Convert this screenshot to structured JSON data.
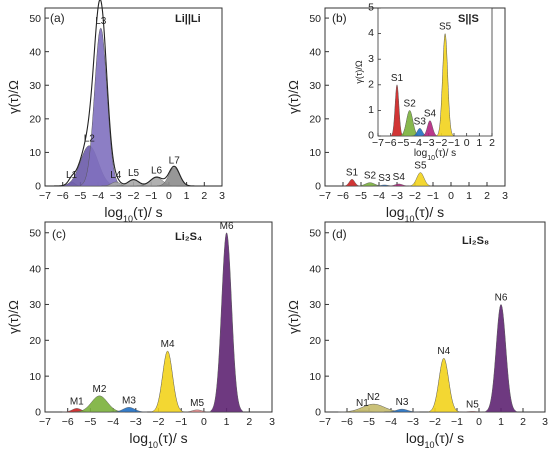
{
  "chart_data": [
    {
      "type": "area",
      "panel": "(a)",
      "sample": "Li||Li",
      "xlabel": "log10(τ)/ s",
      "ylabel": "γ(τ)/Ω",
      "xlim": [
        -7,
        3
      ],
      "ylim": [
        0,
        53
      ],
      "xticks": [
        -7,
        -6,
        -5,
        -4,
        -3,
        -2,
        -1,
        0,
        1,
        2,
        3
      ],
      "yticks": [
        0,
        10,
        20,
        30,
        40,
        50
      ],
      "envelope": true,
      "peaks": [
        {
          "name": "L1",
          "center": -5.5,
          "height": 1.2,
          "width": 0.18,
          "color": "#b9aad3"
        },
        {
          "name": "L2",
          "center": -4.5,
          "height": 12,
          "width": 0.5,
          "color": "#6a5aa8"
        },
        {
          "name": "L3",
          "center": -3.85,
          "height": 47,
          "width": 0.35,
          "color": "#8070bf"
        },
        {
          "name": "L4",
          "center": -3.0,
          "height": 1.2,
          "width": 0.25,
          "color": "#a8a8a8"
        },
        {
          "name": "L5",
          "center": -2.0,
          "height": 1.8,
          "width": 0.3,
          "color": "#a8a8a8"
        },
        {
          "name": "L6",
          "center": -0.7,
          "height": 2.5,
          "width": 0.35,
          "color": "#a8a8a8"
        },
        {
          "name": "L7",
          "center": 0.3,
          "height": 5.5,
          "width": 0.3,
          "color": "#8c8c8c"
        }
      ]
    },
    {
      "type": "area",
      "panel": "(b)",
      "sample": "S||S",
      "xlabel": "log10(τ)/ s",
      "ylabel": "γ(τ)/Ω",
      "xlim": [
        -7,
        3
      ],
      "ylim": [
        0,
        53
      ],
      "xticks": [
        -7,
        -6,
        -5,
        -4,
        -3,
        -2,
        -1,
        0,
        1,
        2,
        3
      ],
      "yticks": [
        0,
        10,
        20,
        30,
        40,
        50
      ],
      "envelope": false,
      "peaks": [
        {
          "name": "S1",
          "center": -5.5,
          "height": 2.0,
          "width": 0.15,
          "color": "#cc1f1f"
        },
        {
          "name": "S2",
          "center": -4.5,
          "height": 1.0,
          "width": 0.25,
          "color": "#7ab03b"
        },
        {
          "name": "S3",
          "center": -3.7,
          "height": 0.3,
          "width": 0.2,
          "color": "#1f6fc4"
        },
        {
          "name": "S4",
          "center": -2.9,
          "height": 0.6,
          "width": 0.2,
          "color": "#b2247e"
        },
        {
          "name": "S5",
          "center": -1.7,
          "height": 4.0,
          "width": 0.2,
          "color": "#f2d31c"
        }
      ],
      "inset": {
        "xlabel": "log10(τ)/ s",
        "ylabel": "γ(τ)/Ω",
        "xlim": [
          -7,
          2
        ],
        "ylim": [
          0,
          5
        ],
        "xticks": [
          -7,
          -6,
          -5,
          -4,
          -3,
          -2,
          -1,
          0,
          1,
          2
        ],
        "yticks": [
          0,
          1,
          2,
          3,
          4,
          5
        ]
      }
    },
    {
      "type": "area",
      "panel": "(c)",
      "sample": "Li₂S₄",
      "xlabel": "log10(τ)/ s",
      "ylabel": "γ(τ)/Ω",
      "xlim": [
        -7,
        3
      ],
      "ylim": [
        0,
        53
      ],
      "xticks": [
        -7,
        -6,
        -5,
        -4,
        -3,
        -2,
        -1,
        0,
        1,
        2,
        3
      ],
      "yticks": [
        0,
        10,
        20,
        30,
        40,
        50
      ],
      "envelope": false,
      "peaks": [
        {
          "name": "M1",
          "center": -5.6,
          "height": 1.0,
          "width": 0.2,
          "color": "#cc1f1f"
        },
        {
          "name": "M2",
          "center": -4.6,
          "height": 4.5,
          "width": 0.35,
          "color": "#7ab03b"
        },
        {
          "name": "M3",
          "center": -3.3,
          "height": 1.3,
          "width": 0.25,
          "color": "#1f6fc4"
        },
        {
          "name": "M4",
          "center": -1.6,
          "height": 17,
          "width": 0.22,
          "color": "#f2d31c"
        },
        {
          "name": "M5",
          "center": -0.3,
          "height": 0.6,
          "width": 0.2,
          "color": "#e88a8a"
        },
        {
          "name": "M6",
          "center": 1.0,
          "height": 50,
          "width": 0.22,
          "color": "#5e2472"
        }
      ]
    },
    {
      "type": "area",
      "panel": "(d)",
      "sample": "Li₂S₈",
      "xlabel": "log10(τ)/ s",
      "ylabel": "γ(τ)/Ω",
      "xlim": [
        -7,
        3
      ],
      "ylim": [
        0,
        53
      ],
      "xticks": [
        -7,
        -6,
        -5,
        -4,
        -3,
        -2,
        -1,
        0,
        1,
        2,
        3
      ],
      "yticks": [
        0,
        10,
        20,
        30,
        40,
        50
      ],
      "envelope": false,
      "peaks": [
        {
          "name": "N1",
          "center": -5.3,
          "height": 0.5,
          "width": 0.3,
          "color": "#c8c08a"
        },
        {
          "name": "N2",
          "center": -4.8,
          "height": 2.2,
          "width": 0.5,
          "color": "#c4ba6a"
        },
        {
          "name": "N3",
          "center": -3.5,
          "height": 0.8,
          "width": 0.25,
          "color": "#1f6fc4"
        },
        {
          "name": "N4",
          "center": -1.6,
          "height": 15,
          "width": 0.22,
          "color": "#f2d31c"
        },
        {
          "name": "N5",
          "center": -0.3,
          "height": 0.2,
          "width": 0.2,
          "color": "#e88a8a"
        },
        {
          "name": "N6",
          "center": 1.0,
          "height": 30,
          "width": 0.22,
          "color": "#5e2472"
        }
      ]
    }
  ]
}
